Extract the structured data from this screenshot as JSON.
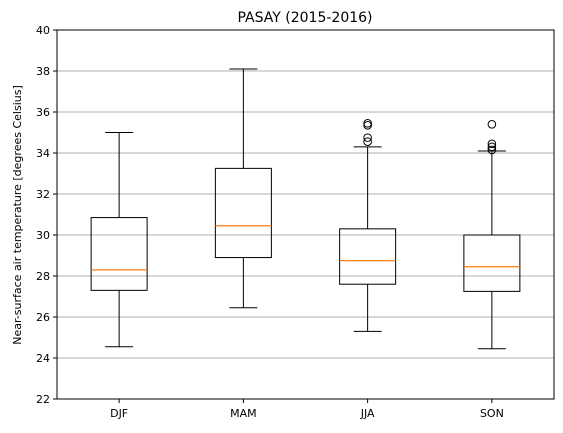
{
  "chart_data": {
    "type": "box",
    "title": "PASAY (2015-2016)",
    "xlabel": "",
    "ylabel": "Near-surface air temperature [degrees Celsius]",
    "ylim": [
      22,
      40
    ],
    "yticks": [
      22,
      24,
      26,
      28,
      30,
      32,
      34,
      36,
      38,
      40
    ],
    "grid": "horizontal",
    "categories": [
      "DJF",
      "MAM",
      "JJA",
      "SON"
    ],
    "boxes": [
      {
        "category": "DJF",
        "whisker_low": 24.55,
        "q1": 27.3,
        "median": 28.3,
        "q3": 30.85,
        "whisker_high": 35.0,
        "outliers": []
      },
      {
        "category": "MAM",
        "whisker_low": 26.45,
        "q1": 28.9,
        "median": 30.45,
        "q3": 33.25,
        "whisker_high": 38.1,
        "outliers": []
      },
      {
        "category": "JJA",
        "whisker_low": 25.3,
        "q1": 27.6,
        "median": 28.75,
        "q3": 30.3,
        "whisker_high": 34.3,
        "outliers": [
          34.55,
          34.75,
          35.35,
          35.45
        ]
      },
      {
        "category": "SON",
        "whisker_low": 24.45,
        "q1": 27.25,
        "median": 28.45,
        "q3": 30.0,
        "whisker_high": 34.1,
        "outliers": [
          34.15,
          34.3,
          34.45,
          35.4
        ]
      }
    ],
    "colors": {
      "box": "#000000",
      "median": "#ff7f0e",
      "grid": "#b0b0b0"
    }
  }
}
